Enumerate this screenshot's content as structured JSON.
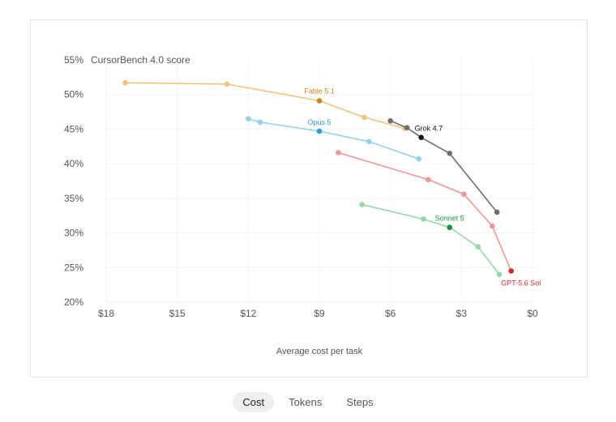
{
  "chart_data": {
    "type": "line",
    "ylabel": "CursorBench 4.0 score",
    "xlabel": "Average cost per task",
    "xlim": [
      18,
      0
    ],
    "ylim": [
      20,
      55
    ],
    "x_ticks": [
      18,
      15,
      12,
      9,
      6,
      3,
      0
    ],
    "x_tick_labels": [
      "$18",
      "$15",
      "$12",
      "$9",
      "$6",
      "$3",
      "$0"
    ],
    "y_ticks": [
      20,
      25,
      30,
      35,
      40,
      45,
      50,
      55
    ],
    "y_tick_labels": [
      "20%",
      "25%",
      "30%",
      "35%",
      "40%",
      "45%",
      "50%",
      "55%"
    ],
    "grid": true,
    "series": [
      {
        "name": "Fable 5.1",
        "color": "#f0c27b",
        "highlight_color": "#c98a12",
        "highlight_index": 2,
        "x": [
          17.2,
          12.9,
          9.0,
          7.1,
          5.4
        ],
        "y": [
          51.7,
          51.5,
          49.1,
          46.7,
          45.1
        ]
      },
      {
        "name": "Opus 5",
        "color": "#8fd3ee",
        "highlight_color": "#2b9be0",
        "highlight_index": 2,
        "x": [
          12.0,
          11.5,
          9.0,
          6.9,
          4.8
        ],
        "y": [
          46.5,
          46.0,
          44.7,
          43.2,
          40.7
        ]
      },
      {
        "name": "Grok 4.7",
        "color": "#6e6e6e",
        "highlight_color": "#111111",
        "highlight_index": 2,
        "x": [
          6.0,
          5.3,
          4.7,
          3.5,
          1.5
        ],
        "y": [
          46.2,
          45.2,
          43.8,
          41.5,
          33.0
        ]
      },
      {
        "name": "GPT-5.6 Sol",
        "color": "#ef9797",
        "highlight_color": "#d8262c",
        "highlight_index": 4,
        "x": [
          8.2,
          4.4,
          2.9,
          1.7,
          0.9
        ],
        "y": [
          41.6,
          37.7,
          35.6,
          31.0,
          24.5
        ]
      },
      {
        "name": "Sonnet 5",
        "color": "#93d9a6",
        "highlight_color": "#14943a",
        "highlight_index": 2,
        "x": [
          7.2,
          4.6,
          3.5,
          2.3,
          1.4
        ],
        "y": [
          34.1,
          32.0,
          30.8,
          28.0,
          24.0
        ]
      }
    ]
  },
  "tabs": {
    "cost": "Cost",
    "tokens": "Tokens",
    "steps": "Steps",
    "active": "cost"
  }
}
